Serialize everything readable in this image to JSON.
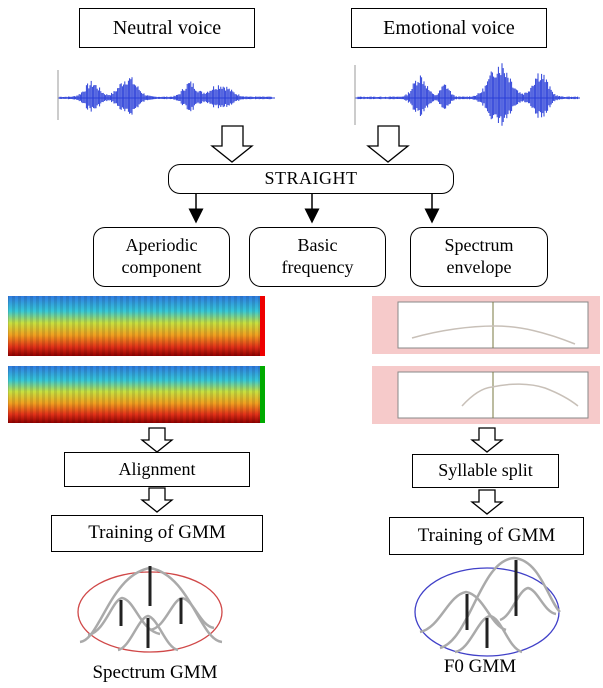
{
  "inputs": {
    "neutral": "Neutral voice",
    "emotional": "Emotional voice"
  },
  "analyzer": "STRAIGHT",
  "components": {
    "aperiodic": "Aperiodic component",
    "basic_frequency": "Basic frequency",
    "spectrum_envelope": "Spectrum envelope"
  },
  "left_branch": {
    "step1": "Alignment",
    "step2": "Training of GMM",
    "result": "Spectrum GMM"
  },
  "right_branch": {
    "step1": "Syllable split",
    "step2": "Training of GMM",
    "result": "F0 GMM"
  },
  "colors": {
    "waveform": "#2a3fd8",
    "spectrum_gmm_ellipse": "#d04848",
    "f0_gmm_ellipse": "#4040c8",
    "f0_panel_bg": "#f6caca"
  }
}
